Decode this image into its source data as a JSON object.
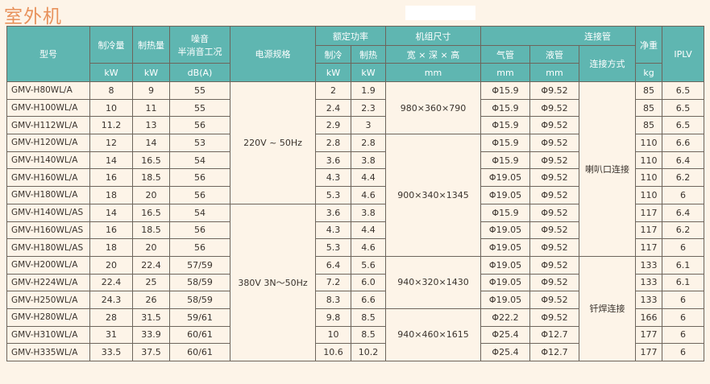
{
  "title": "室外机",
  "colors": {
    "header_bg": "#5fb6b1",
    "title": "#e8925c",
    "background": "#fdf4e8"
  },
  "headers": {
    "model": "型号",
    "cooling": "制冷量",
    "heating": "制热量",
    "noise": "噪音",
    "noise_sub": "半消音工况",
    "power": "电源规格",
    "rated": "额定功率",
    "rated_cool": "制冷",
    "rated_heat": "制热",
    "size": "机组尺寸",
    "size_sub": "宽 × 深 × 高",
    "pipe": "连接管",
    "gas": "气管",
    "liquid": "液管",
    "conn": "连接方式",
    "weight": "净重",
    "iplv": "IPLV",
    "u_kw1": "kW",
    "u_kw2": "kW",
    "u_db": "dB(A)",
    "u_kw3": "kW",
    "u_kw4": "kW",
    "u_mm1": "mm",
    "u_mm2": "mm",
    "u_mm3": "mm",
    "u_kg": "kg"
  },
  "rows": [
    [
      "GMV-H80WL/A",
      "8",
      "9",
      "55",
      "2",
      "1.9",
      "Φ15.9",
      "Φ9.52",
      "85",
      "6.5"
    ],
    [
      "GMV-H100WL/A",
      "10",
      "11",
      "55",
      "2.4",
      "2.3",
      "Φ15.9",
      "Φ9.52",
      "85",
      "6.5"
    ],
    [
      "GMV-H112WL/A",
      "11.2",
      "13",
      "56",
      "2.9",
      "3",
      "Φ15.9",
      "Φ9.52",
      "85",
      "6.5"
    ],
    [
      "GMV-H120WL/A",
      "12",
      "14",
      "53",
      "2.8",
      "2.8",
      "Φ15.9",
      "Φ9.52",
      "110",
      "6.6"
    ],
    [
      "GMV-H140WL/A",
      "14",
      "16.5",
      "54",
      "3.6",
      "3.8",
      "Φ15.9",
      "Φ9.52",
      "110",
      "6.4"
    ],
    [
      "GMV-H160WL/A",
      "16",
      "18.5",
      "56",
      "4.3",
      "4.4",
      "Φ19.05",
      "Φ9.52",
      "110",
      "6.2"
    ],
    [
      "GMV-H180WL/A",
      "18",
      "20",
      "56",
      "5.3",
      "4.6",
      "Φ19.05",
      "Φ9.52",
      "110",
      "6"
    ],
    [
      "GMV-H140WL/AS",
      "14",
      "16.5",
      "54",
      "3.6",
      "3.8",
      "Φ15.9",
      "Φ9.52",
      "117",
      "6.4"
    ],
    [
      "GMV-H160WL/AS",
      "16",
      "18.5",
      "56",
      "4.3",
      "4.4",
      "Φ19.05",
      "Φ9.52",
      "117",
      "6.2"
    ],
    [
      "GMV-H180WL/AS",
      "18",
      "20",
      "56",
      "5.3",
      "4.6",
      "Φ19.05",
      "Φ9.52",
      "117",
      "6"
    ],
    [
      "GMV-H200WL/A",
      "20",
      "22.4",
      "57/59",
      "6.4",
      "5.6",
      "Φ19.05",
      "Φ9.52",
      "133",
      "6.1"
    ],
    [
      "GMV-H224WL/A",
      "22.4",
      "25",
      "58/59",
      "7.2",
      "6.0",
      "Φ19.05",
      "Φ9.52",
      "133",
      "6.1"
    ],
    [
      "GMV-H250WL/A",
      "24.3",
      "26",
      "58/59",
      "8.3",
      "6.6",
      "Φ19.05",
      "Φ9.52",
      "133",
      "6"
    ],
    [
      "GMV-H280WL/A",
      "28",
      "31.5",
      "59/61",
      "9.8",
      "8.5",
      "Φ22.2",
      "Φ9.52",
      "166",
      "6"
    ],
    [
      "GMV-H310WL/A",
      "31",
      "33.9",
      "60/61",
      "10",
      "8.5",
      "Φ25.4",
      "Φ12.7",
      "177",
      "6"
    ],
    [
      "GMV-H335WL/A",
      "33.5",
      "37.5",
      "60/61",
      "10.6",
      "10.2",
      "Φ25.4",
      "Φ12.7",
      "177",
      "6"
    ]
  ],
  "power_groups": [
    {
      "label": "220V ~ 50Hz",
      "span": 7
    },
    {
      "label": "380V 3N～50Hz",
      "span": 9
    }
  ],
  "size_groups": [
    {
      "label": "980×360×790",
      "span": 3
    },
    {
      "label": "900×340×1345",
      "span": 7
    },
    {
      "label": "940×320×1430",
      "span": 3
    },
    {
      "label": "940×460×1615",
      "span": 3
    }
  ],
  "conn_groups": [
    {
      "label": "喇叭口连接",
      "span": 10
    },
    {
      "label": "钎焊连接",
      "span": 6
    }
  ]
}
